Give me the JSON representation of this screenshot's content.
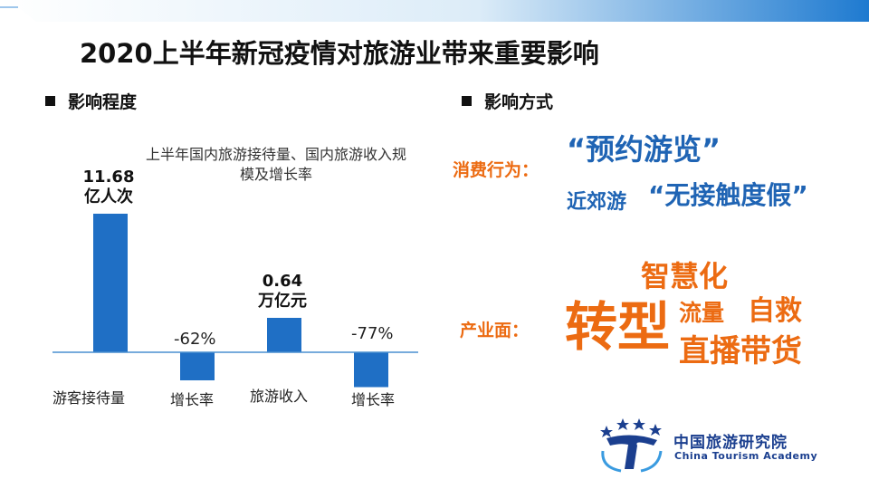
{
  "title": "2020上半年新冠疫情对旅游业带来重要影响",
  "left_section": {
    "heading": "影响程度"
  },
  "right_section": {
    "heading": "影响方式"
  },
  "chart_data": {
    "type": "bar",
    "title": "上半年国内旅游接待量、国内旅游收入规模及增长率",
    "categories": [
      "游客接待量",
      "增长率",
      "旅游收入",
      "增长率"
    ],
    "values": [
      11.68,
      -62,
      0.64,
      -77
    ],
    "value_labels": [
      "11.68",
      "-62%",
      "0.64",
      "-77%"
    ],
    "value_units": [
      "亿人次",
      "",
      "万亿元",
      ""
    ],
    "colors": {
      "bar": "#1f6fc5",
      "axis": "#4a8fd0"
    }
  },
  "impact": {
    "consumer_label": "消费行为：",
    "reservation_text": "“预约游览”",
    "nearby_text": "近郊游",
    "contactless_text": "“无接触度假”",
    "industry_label": "产业面：",
    "smart_text": "智慧化",
    "transform_text": "转型",
    "traffic_text": "流量",
    "self_rescue_text": "自救",
    "live_sales_text": "直播带货"
  },
  "logo": {
    "name_cn": "中国旅游研究院",
    "name_en": "China Tourism Academy"
  },
  "colors": {
    "accent_blue": "#1f64b4",
    "accent_orange": "#ec6b12",
    "bar_blue": "#1f6fc5"
  }
}
